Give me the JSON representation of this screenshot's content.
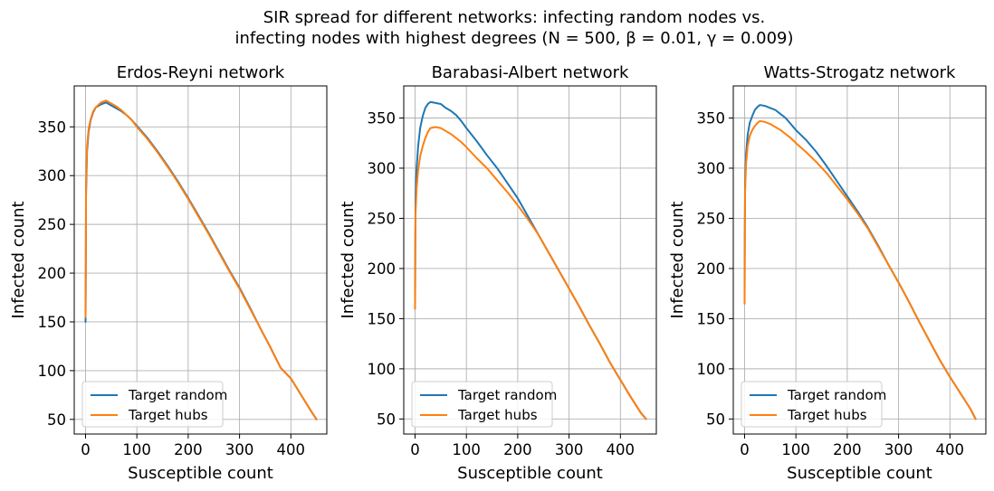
{
  "figure": {
    "suptitle_line1": "SIR spread for different networks: infecting random nodes vs.",
    "suptitle_line2": "infecting nodes with highest degrees (N = 500, β = 0.01, γ = 0.009)"
  },
  "chart_data": [
    {
      "type": "line",
      "title": "Erdos-Reyni network",
      "xlabel": "Susceptible count",
      "ylabel": "Infected count",
      "xlim": [
        -22,
        470
      ],
      "ylim": [
        35,
        392
      ],
      "xticks": [
        0,
        100,
        200,
        300,
        400
      ],
      "yticks": [
        50,
        100,
        150,
        200,
        250,
        300,
        350
      ],
      "grid": true,
      "legend_position": "lower-left",
      "series": [
        {
          "name": "Target random",
          "color": "#1f77b4",
          "points": [
            [
              0,
              150
            ],
            [
              0.5,
              200
            ],
            [
              1,
              280
            ],
            [
              3,
              325
            ],
            [
              6,
              345
            ],
            [
              10,
              357
            ],
            [
              15,
              365
            ],
            [
              20,
              370
            ],
            [
              30,
              373
            ],
            [
              40,
              375
            ],
            [
              50,
              372
            ],
            [
              60,
              369
            ],
            [
              70,
              366
            ],
            [
              80,
              362
            ],
            [
              90,
              357
            ],
            [
              100,
              351
            ],
            [
              120,
              339
            ],
            [
              140,
              325
            ],
            [
              160,
              310
            ],
            [
              180,
              294
            ],
            [
              200,
              277
            ],
            [
              220,
              259
            ],
            [
              240,
              241
            ],
            [
              260,
              222
            ],
            [
              280,
              203
            ],
            [
              300,
              185
            ],
            [
              320,
              165
            ],
            [
              340,
              144
            ],
            [
              360,
              124
            ],
            [
              380,
              103
            ],
            [
              400,
              92
            ],
            [
              420,
              75
            ],
            [
              440,
              58
            ],
            [
              450,
              50
            ]
          ]
        },
        {
          "name": "Target hubs",
          "color": "#ff7f0e",
          "points": [
            [
              0,
              155
            ],
            [
              0.5,
              210
            ],
            [
              1,
              290
            ],
            [
              3,
              330
            ],
            [
              6,
              348
            ],
            [
              10,
              358
            ],
            [
              15,
              366
            ],
            [
              20,
              370
            ],
            [
              30,
              375
            ],
            [
              40,
              377
            ],
            [
              50,
              374
            ],
            [
              60,
              371
            ],
            [
              70,
              367
            ],
            [
              80,
              362
            ],
            [
              90,
              357
            ],
            [
              100,
              350
            ],
            [
              120,
              338
            ],
            [
              140,
              324
            ],
            [
              160,
              309
            ],
            [
              180,
              293
            ],
            [
              200,
              276
            ],
            [
              220,
              258
            ],
            [
              240,
              240
            ],
            [
              260,
              221
            ],
            [
              280,
              202
            ],
            [
              300,
              184
            ],
            [
              320,
              164
            ],
            [
              340,
              144
            ],
            [
              360,
              124
            ],
            [
              380,
              103
            ],
            [
              400,
              92
            ],
            [
              420,
              75
            ],
            [
              440,
              58
            ],
            [
              450,
              50
            ]
          ]
        }
      ]
    },
    {
      "type": "line",
      "title": "Barabasi-Albert network",
      "xlabel": "Susceptible count",
      "ylabel": "Infected count",
      "xlim": [
        -22,
        470
      ],
      "ylim": [
        35,
        382
      ],
      "xticks": [
        0,
        100,
        200,
        300,
        400
      ],
      "yticks": [
        50,
        100,
        150,
        200,
        250,
        300,
        350
      ],
      "grid": true,
      "legend_position": "lower-left",
      "series": [
        {
          "name": "Target random",
          "color": "#1f77b4",
          "points": [
            [
              0,
              160
            ],
            [
              0.5,
              230
            ],
            [
              1,
              270
            ],
            [
              3,
              300
            ],
            [
              6,
              322
            ],
            [
              10,
              340
            ],
            [
              15,
              352
            ],
            [
              20,
              360
            ],
            [
              25,
              364
            ],
            [
              30,
              366
            ],
            [
              40,
              365
            ],
            [
              50,
              364
            ],
            [
              60,
              360
            ],
            [
              70,
              357
            ],
            [
              80,
              353
            ],
            [
              90,
              347
            ],
            [
              100,
              340
            ],
            [
              120,
              327
            ],
            [
              140,
              313
            ],
            [
              160,
              300
            ],
            [
              180,
              285
            ],
            [
              200,
              270
            ],
            [
              220,
              252
            ],
            [
              240,
              234
            ],
            [
              260,
              216
            ],
            [
              280,
              198
            ],
            [
              300,
              180
            ],
            [
              320,
              162
            ],
            [
              340,
              143
            ],
            [
              360,
              125
            ],
            [
              380,
              106
            ],
            [
              400,
              89
            ],
            [
              420,
              72
            ],
            [
              440,
              56
            ],
            [
              450,
              50
            ]
          ]
        },
        {
          "name": "Target hubs",
          "color": "#ff7f0e",
          "points": [
            [
              0,
              160
            ],
            [
              0.5,
              220
            ],
            [
              1,
              255
            ],
            [
              3,
              280
            ],
            [
              6,
              298
            ],
            [
              10,
              312
            ],
            [
              15,
              322
            ],
            [
              20,
              330
            ],
            [
              25,
              336
            ],
            [
              30,
              340
            ],
            [
              40,
              341
            ],
            [
              50,
              340
            ],
            [
              60,
              337
            ],
            [
              70,
              334
            ],
            [
              80,
              330
            ],
            [
              90,
              326
            ],
            [
              100,
              321
            ],
            [
              120,
              310
            ],
            [
              140,
              300
            ],
            [
              160,
              288
            ],
            [
              180,
              276
            ],
            [
              200,
              263
            ],
            [
              220,
              249
            ],
            [
              240,
              234
            ],
            [
              260,
              216
            ],
            [
              280,
              198
            ],
            [
              300,
              180
            ],
            [
              320,
              162
            ],
            [
              340,
              143
            ],
            [
              360,
              125
            ],
            [
              380,
              106
            ],
            [
              400,
              89
            ],
            [
              420,
              72
            ],
            [
              440,
              56
            ],
            [
              450,
              50
            ]
          ]
        }
      ]
    },
    {
      "type": "line",
      "title": "Watts-Strogatz network",
      "xlabel": "Susceptible count",
      "ylabel": "Infected count",
      "xlim": [
        -22,
        470
      ],
      "ylim": [
        35,
        382
      ],
      "xticks": [
        0,
        100,
        200,
        300,
        400
      ],
      "yticks": [
        50,
        100,
        150,
        200,
        250,
        300,
        350
      ],
      "grid": true,
      "legend_position": "lower-left",
      "series": [
        {
          "name": "Target random",
          "color": "#1f77b4",
          "points": [
            [
              0,
              165
            ],
            [
              0.5,
              240
            ],
            [
              1,
              285
            ],
            [
              3,
              315
            ],
            [
              6,
              333
            ],
            [
              10,
              345
            ],
            [
              15,
              352
            ],
            [
              20,
              358
            ],
            [
              25,
              361
            ],
            [
              30,
              363
            ],
            [
              40,
              362
            ],
            [
              50,
              360
            ],
            [
              60,
              358
            ],
            [
              70,
              354
            ],
            [
              80,
              350
            ],
            [
              90,
              344
            ],
            [
              100,
              338
            ],
            [
              120,
              328
            ],
            [
              140,
              316
            ],
            [
              160,
              302
            ],
            [
              180,
              287
            ],
            [
              200,
              272
            ],
            [
              220,
              257
            ],
            [
              240,
              241
            ],
            [
              260,
              223
            ],
            [
              280,
              204
            ],
            [
              300,
              186
            ],
            [
              320,
              167
            ],
            [
              340,
              147
            ],
            [
              360,
              128
            ],
            [
              380,
              109
            ],
            [
              400,
              92
            ],
            [
              420,
              76
            ],
            [
              440,
              60
            ],
            [
              450,
              50
            ]
          ]
        },
        {
          "name": "Target hubs",
          "color": "#ff7f0e",
          "points": [
            [
              0,
              165
            ],
            [
              0.5,
              235
            ],
            [
              1,
              278
            ],
            [
              3,
              305
            ],
            [
              6,
              322
            ],
            [
              10,
              332
            ],
            [
              15,
              338
            ],
            [
              20,
              342
            ],
            [
              25,
              345
            ],
            [
              30,
              347
            ],
            [
              40,
              346
            ],
            [
              50,
              344
            ],
            [
              60,
              341
            ],
            [
              70,
              338
            ],
            [
              80,
              334
            ],
            [
              90,
              330
            ],
            [
              100,
              325
            ],
            [
              120,
              316
            ],
            [
              140,
              306
            ],
            [
              160,
              295
            ],
            [
              180,
              282
            ],
            [
              200,
              269
            ],
            [
              220,
              255
            ],
            [
              240,
              240
            ],
            [
              260,
              222
            ],
            [
              280,
              204
            ],
            [
              300,
              186
            ],
            [
              320,
              167
            ],
            [
              340,
              147
            ],
            [
              360,
              128
            ],
            [
              380,
              109
            ],
            [
              400,
              92
            ],
            [
              420,
              76
            ],
            [
              440,
              60
            ],
            [
              450,
              50
            ]
          ]
        }
      ]
    }
  ]
}
